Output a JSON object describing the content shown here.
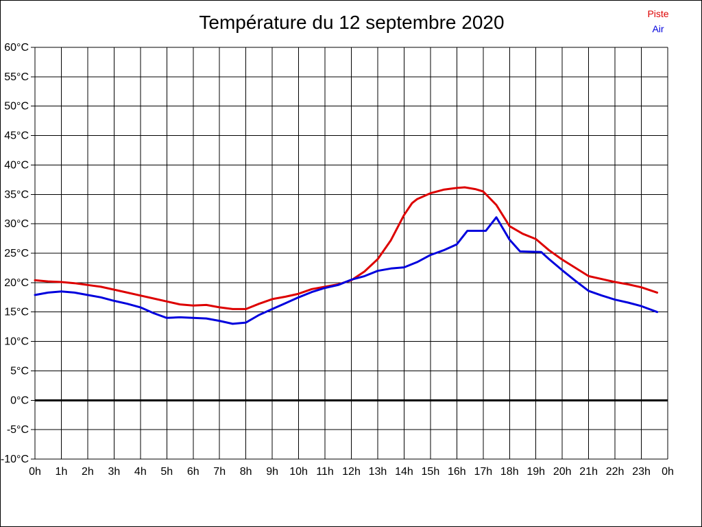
{
  "page": {
    "background": "#ffffff",
    "border_color": "#000000"
  },
  "header": {
    "title": "Température du 12 septembre 2020"
  },
  "legend": {
    "items": [
      {
        "label": "Piste",
        "color": "#dd0000"
      },
      {
        "label": "Air",
        "color": "#0000dd"
      }
    ]
  },
  "chart_data": {
    "type": "line",
    "title": "Température du 12 septembre 2020",
    "xlabel": "",
    "ylabel": "",
    "x_unit": "hours",
    "xlim": [
      0,
      24
    ],
    "ylim": [
      -10,
      60
    ],
    "y_tick_step": 5,
    "grid": true,
    "legend_position": "top-right",
    "x_tick_labels": [
      "0h",
      "1h",
      "2h",
      "3h",
      "4h",
      "5h",
      "6h",
      "7h",
      "8h",
      "9h",
      "10h",
      "11h",
      "12h",
      "13h",
      "14h",
      "15h",
      "16h",
      "17h",
      "18h",
      "19h",
      "20h",
      "21h",
      "22h",
      "23h",
      "0h"
    ],
    "y_tick_labels": [
      "60°C",
      "55°C",
      "50°C",
      "45°C",
      "40°C",
      "35°C",
      "30°C",
      "25°C",
      "20°C",
      "15°C",
      "10°C",
      "5°C",
      "0°C",
      "-5°C",
      "-10°C"
    ],
    "zero_line": {
      "temp": 0,
      "stroke_width": 3,
      "color": "#000000"
    },
    "grid_color": "#000000",
    "series": [
      {
        "name": "Piste",
        "color": "#dd0000",
        "points": [
          [
            0,
            20.4
          ],
          [
            0.5,
            20.2
          ],
          [
            1,
            20.1
          ],
          [
            1.5,
            19.9
          ],
          [
            2,
            19.6
          ],
          [
            2.5,
            19.3
          ],
          [
            3,
            18.8
          ],
          [
            3.5,
            18.3
          ],
          [
            4,
            17.8
          ],
          [
            4.5,
            17.3
          ],
          [
            5,
            16.8
          ],
          [
            5.5,
            16.3
          ],
          [
            6,
            16.1
          ],
          [
            6.5,
            16.2
          ],
          [
            7,
            15.8
          ],
          [
            7.5,
            15.5
          ],
          [
            8,
            15.5
          ],
          [
            8.5,
            16.4
          ],
          [
            9,
            17.2
          ],
          [
            9.5,
            17.6
          ],
          [
            10,
            18.1
          ],
          [
            10.5,
            18.9
          ],
          [
            11,
            19.3
          ],
          [
            11.5,
            19.7
          ],
          [
            12,
            20.4
          ],
          [
            12.5,
            21.9
          ],
          [
            13,
            24.0
          ],
          [
            13.5,
            27.2
          ],
          [
            14,
            31.5
          ],
          [
            14.3,
            33.5
          ],
          [
            14.5,
            34.2
          ],
          [
            15,
            35.2
          ],
          [
            15.5,
            35.8
          ],
          [
            16,
            36.1
          ],
          [
            16.3,
            36.2
          ],
          [
            16.7,
            35.9
          ],
          [
            17,
            35.5
          ],
          [
            17.5,
            33.2
          ],
          [
            18,
            29.6
          ],
          [
            18.5,
            28.3
          ],
          [
            19,
            27.4
          ],
          [
            19.5,
            25.5
          ],
          [
            20,
            23.9
          ],
          [
            20.5,
            22.5
          ],
          [
            21,
            21.1
          ],
          [
            21.5,
            20.6
          ],
          [
            22,
            20.1
          ],
          [
            22.5,
            19.7
          ],
          [
            23,
            19.2
          ],
          [
            23.6,
            18.3
          ]
        ]
      },
      {
        "name": "Air",
        "color": "#0000dd",
        "points": [
          [
            0,
            17.9
          ],
          [
            0.5,
            18.3
          ],
          [
            1,
            18.5
          ],
          [
            1.5,
            18.3
          ],
          [
            2,
            17.9
          ],
          [
            2.5,
            17.5
          ],
          [
            3,
            16.9
          ],
          [
            3.5,
            16.4
          ],
          [
            4,
            15.8
          ],
          [
            4.5,
            14.8
          ],
          [
            5,
            14.0
          ],
          [
            5.5,
            14.1
          ],
          [
            6,
            14.0
          ],
          [
            6.5,
            13.9
          ],
          [
            7,
            13.5
          ],
          [
            7.5,
            13.0
          ],
          [
            8,
            13.2
          ],
          [
            8.5,
            14.5
          ],
          [
            9,
            15.5
          ],
          [
            9.5,
            16.5
          ],
          [
            10,
            17.5
          ],
          [
            10.5,
            18.4
          ],
          [
            11,
            19.1
          ],
          [
            11.5,
            19.6
          ],
          [
            12,
            20.5
          ],
          [
            12.5,
            21.1
          ],
          [
            13,
            22.0
          ],
          [
            13.5,
            22.4
          ],
          [
            14,
            22.6
          ],
          [
            14.5,
            23.5
          ],
          [
            15,
            24.7
          ],
          [
            15.5,
            25.5
          ],
          [
            16,
            26.5
          ],
          [
            16.4,
            28.8
          ],
          [
            17.1,
            28.8
          ],
          [
            17.5,
            31.1
          ],
          [
            18,
            27.3
          ],
          [
            18.4,
            25.3
          ],
          [
            19.2,
            25.2
          ],
          [
            19.5,
            24.0
          ],
          [
            20,
            22.1
          ],
          [
            20.5,
            20.3
          ],
          [
            21,
            18.6
          ],
          [
            21.5,
            17.8
          ],
          [
            22,
            17.1
          ],
          [
            22.5,
            16.6
          ],
          [
            23,
            16.0
          ],
          [
            23.6,
            15.0
          ]
        ]
      }
    ]
  }
}
